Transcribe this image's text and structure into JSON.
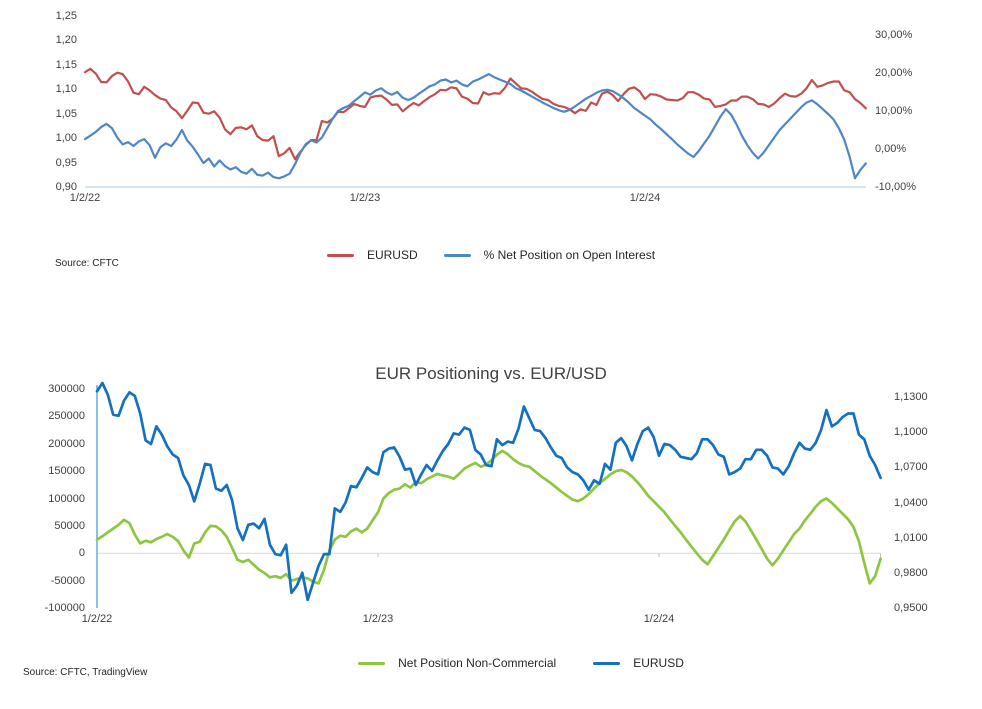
{
  "meta": {
    "background": "#ffffff",
    "text_color": "#404040",
    "axis_line_color_top": "#b9d5ea",
    "axis_line_color_bottom": "#4aa0d8",
    "gridline_color": "#d9d9d9"
  },
  "chart_data": [
    {
      "type": "line",
      "title": "",
      "source": "Source: CFTC",
      "legend_position": "bottom",
      "grid": false,
      "x": {
        "tick_labels": [
          "1/2/22",
          "1/2/23",
          "1/2/24"
        ],
        "tick_weeks": [
          0,
          52,
          104
        ],
        "n_points": 146,
        "unit": "weekly"
      },
      "left_axis": {
        "range": [
          0.9,
          1.25
        ],
        "tick_values": [
          1.25,
          1.2,
          1.15,
          1.1,
          1.05,
          1.0,
          0.95,
          0.9
        ],
        "tick_labels": [
          "1,25",
          "1,20",
          "1,15",
          "1,10",
          "1,05",
          "1,00",
          "0,95",
          "0,90"
        ]
      },
      "right_axis": {
        "range": [
          -10,
          35
        ],
        "tick_values": [
          30,
          20,
          10,
          0,
          -10
        ],
        "tick_labels": [
          "30,00%",
          "20,00%",
          "10,00%",
          "0,00%",
          "-10,00%"
        ]
      },
      "series": [
        {
          "name": "EURUSD",
          "axis": "left",
          "color": "#c0504d",
          "values": [
            1.135,
            1.142,
            1.132,
            1.115,
            1.114,
            1.127,
            1.134,
            1.131,
            1.116,
            1.093,
            1.09,
            1.105,
            1.098,
            1.088,
            1.081,
            1.078,
            1.063,
            1.055,
            1.041,
            1.056,
            1.073,
            1.072,
            1.052,
            1.05,
            1.055,
            1.042,
            1.018,
            1.008,
            1.021,
            1.022,
            1.018,
            1.026,
            1.004,
            0.996,
            0.995,
            1.004,
            0.963,
            0.969,
            0.98,
            0.957,
            0.972,
            0.986,
            0.996,
            0.996,
            1.035,
            1.032,
            1.04,
            1.054,
            1.053,
            1.061,
            1.07,
            1.066,
            1.064,
            1.083,
            1.086,
            1.087,
            1.079,
            1.068,
            1.069,
            1.055,
            1.064,
            1.072,
            1.067,
            1.076,
            1.084,
            1.09,
            1.099,
            1.098,
            1.104,
            1.102,
            1.085,
            1.081,
            1.072,
            1.071,
            1.094,
            1.089,
            1.092,
            1.091,
            1.103,
            1.122,
            1.112,
            1.102,
            1.101,
            1.095,
            1.087,
            1.08,
            1.078,
            1.07,
            1.066,
            1.064,
            1.059,
            1.051,
            1.059,
            1.056,
            1.073,
            1.068,
            1.091,
            1.095,
            1.088,
            1.076,
            1.09,
            1.101,
            1.104,
            1.096,
            1.08,
            1.09,
            1.089,
            1.085,
            1.079,
            1.078,
            1.077,
            1.082,
            1.094,
            1.094,
            1.089,
            1.081,
            1.079,
            1.064,
            1.066,
            1.069,
            1.077,
            1.077,
            1.085,
            1.085,
            1.08,
            1.07,
            1.069,
            1.064,
            1.071,
            1.082,
            1.091,
            1.086,
            1.085,
            1.091,
            1.102,
            1.119,
            1.105,
            1.108,
            1.113,
            1.116,
            1.116,
            1.098,
            1.094,
            1.08,
            1.072,
            1.061
          ]
        },
        {
          "name": "% Net Position on Open Interest",
          "axis": "right",
          "color": "#4f86c6",
          "values": [
            2.6,
            3.5,
            4.5,
            5.8,
            6.6,
            5.5,
            3.0,
            1.2,
            1.8,
            0.8,
            2.0,
            2.6,
            1.0,
            -2.3,
            0.5,
            1.5,
            0.8,
            2.5,
            5.0,
            2.2,
            0.6,
            -1.5,
            -3.7,
            -2.5,
            -4.6,
            -3.0,
            -4.5,
            -5.4,
            -4.8,
            -6.0,
            -6.5,
            -5.2,
            -6.8,
            -7.0,
            -6.2,
            -7.4,
            -7.7,
            -7.2,
            -6.5,
            -4.0,
            -1.0,
            1.3,
            2.3,
            1.7,
            3.0,
            5.5,
            8.0,
            10.0,
            10.8,
            11.4,
            12.6,
            13.7,
            14.9,
            14.3,
            15.4,
            16.0,
            14.9,
            14.3,
            15.0,
            13.5,
            12.9,
            13.5,
            14.5,
            15.5,
            16.5,
            17.0,
            18.0,
            18.3,
            17.5,
            18.0,
            17.0,
            16.5,
            17.7,
            18.3,
            19.0,
            19.7,
            18.9,
            18.3,
            17.7,
            17.1,
            16.0,
            15.4,
            14.6,
            13.8,
            13.0,
            12.2,
            11.5,
            10.8,
            10.2,
            9.8,
            10.3,
            11.2,
            12.2,
            13.2,
            14.0,
            14.8,
            15.4,
            15.6,
            15.2,
            14.4,
            13.4,
            12.2,
            10.8,
            9.8,
            8.8,
            7.8,
            6.4,
            5.2,
            3.9,
            2.6,
            1.2,
            0.0,
            -1.2,
            -2.1,
            -0.5,
            1.5,
            3.5,
            6.0,
            8.5,
            10.5,
            9.0,
            6.5,
            3.5,
            1.0,
            -1.0,
            -2.5,
            -1.0,
            1.0,
            3.0,
            5.0,
            6.5,
            8.0,
            9.5,
            11.0,
            12.2,
            12.8,
            11.8,
            10.5,
            9.2,
            7.8,
            5.5,
            2.5,
            -2.0,
            -7.7,
            -5.5,
            -3.8
          ]
        }
      ]
    },
    {
      "type": "line",
      "title": "EUR Positioning vs. EUR/USD",
      "source": "Source: CFTC, TradingView",
      "legend_position": "bottom",
      "grid": false,
      "zero_gridline": true,
      "x": {
        "tick_labels": [
          "1/2/22",
          "1/2/23",
          "1/2/24"
        ],
        "tick_weeks": [
          0,
          52,
          104
        ],
        "n_points": 146,
        "unit": "weekly"
      },
      "left_axis": {
        "range": [
          -100000,
          300000
        ],
        "tick_values": [
          300000,
          250000,
          200000,
          150000,
          100000,
          50000,
          0,
          -50000,
          -100000
        ],
        "tick_labels": [
          "300000",
          "250000",
          "200000",
          "150000",
          "100000",
          "50000",
          "0",
          "-50000",
          "-100000"
        ]
      },
      "right_axis": {
        "range": [
          0.95,
          1.1369
        ],
        "tick_values": [
          1.13,
          1.1,
          1.07,
          1.04,
          1.01,
          0.98,
          0.95
        ],
        "tick_labels": [
          "1,1300",
          "1,1000",
          "1,0700",
          "1,0400",
          "1,0100",
          "0,9800",
          "0,9500"
        ]
      },
      "series": [
        {
          "name": "Net Position Non-Commercial",
          "axis": "left",
          "color": "#8dc63f",
          "values": [
            25000,
            31000,
            38000,
            45000,
            52000,
            61000,
            55000,
            34000,
            18000,
            23000,
            20000,
            26000,
            30000,
            35000,
            30000,
            22000,
            5000,
            -8000,
            18000,
            21000,
            38000,
            50000,
            49000,
            42000,
            30000,
            10000,
            -12000,
            -16000,
            -12000,
            -21000,
            -30000,
            -36000,
            -44000,
            -42000,
            -45000,
            -38000,
            -50000,
            -47000,
            -44000,
            -46000,
            -52000,
            -55000,
            -30000,
            5000,
            25000,
            32000,
            30000,
            40000,
            45000,
            38000,
            45000,
            60000,
            75000,
            100000,
            110000,
            116000,
            118000,
            126000,
            120000,
            130000,
            128000,
            135000,
            140000,
            145000,
            142000,
            140000,
            136000,
            145000,
            155000,
            160000,
            165000,
            158000,
            162000,
            170000,
            180000,
            187000,
            181000,
            172000,
            165000,
            160000,
            158000,
            150000,
            142000,
            135000,
            128000,
            120000,
            112000,
            105000,
            98000,
            95000,
            100000,
            108000,
            118000,
            128000,
            136000,
            144000,
            150000,
            152000,
            148000,
            140000,
            130000,
            118000,
            105000,
            95000,
            85000,
            75000,
            62000,
            50000,
            38000,
            25000,
            12000,
            0,
            -12000,
            -20000,
            -5000,
            10000,
            25000,
            42000,
            58000,
            68000,
            58000,
            42000,
            25000,
            8000,
            -10000,
            -22000,
            -10000,
            5000,
            20000,
            35000,
            45000,
            60000,
            72000,
            85000,
            95000,
            100000,
            92000,
            82000,
            72000,
            62000,
            48000,
            22000,
            -18000,
            -55000,
            -42000,
            -10000
          ]
        },
        {
          "name": "EURUSD",
          "axis": "right",
          "color": "#1470c0",
          "values": [
            1.135,
            1.142,
            1.132,
            1.115,
            1.114,
            1.127,
            1.134,
            1.131,
            1.116,
            1.093,
            1.09,
            1.105,
            1.098,
            1.088,
            1.081,
            1.078,
            1.063,
            1.055,
            1.041,
            1.056,
            1.073,
            1.072,
            1.052,
            1.05,
            1.055,
            1.042,
            1.018,
            1.008,
            1.021,
            1.022,
            1.018,
            1.026,
            1.004,
            0.996,
            0.995,
            1.004,
            0.963,
            0.969,
            0.98,
            0.957,
            0.972,
            0.986,
            0.996,
            0.996,
            1.035,
            1.032,
            1.04,
            1.054,
            1.053,
            1.061,
            1.07,
            1.066,
            1.064,
            1.083,
            1.086,
            1.087,
            1.079,
            1.068,
            1.069,
            1.055,
            1.064,
            1.072,
            1.067,
            1.076,
            1.084,
            1.09,
            1.099,
            1.098,
            1.104,
            1.102,
            1.085,
            1.081,
            1.072,
            1.071,
            1.094,
            1.089,
            1.092,
            1.091,
            1.103,
            1.122,
            1.112,
            1.102,
            1.101,
            1.095,
            1.087,
            1.08,
            1.078,
            1.07,
            1.066,
            1.064,
            1.059,
            1.051,
            1.059,
            1.056,
            1.073,
            1.068,
            1.091,
            1.095,
            1.088,
            1.076,
            1.09,
            1.101,
            1.104,
            1.096,
            1.08,
            1.09,
            1.089,
            1.085,
            1.079,
            1.078,
            1.077,
            1.082,
            1.094,
            1.094,
            1.089,
            1.081,
            1.079,
            1.064,
            1.066,
            1.069,
            1.077,
            1.077,
            1.085,
            1.085,
            1.08,
            1.07,
            1.069,
            1.064,
            1.071,
            1.082,
            1.091,
            1.086,
            1.085,
            1.091,
            1.102,
            1.119,
            1.105,
            1.108,
            1.113,
            1.116,
            1.116,
            1.098,
            1.094,
            1.08,
            1.072,
            1.061
          ]
        }
      ]
    }
  ]
}
